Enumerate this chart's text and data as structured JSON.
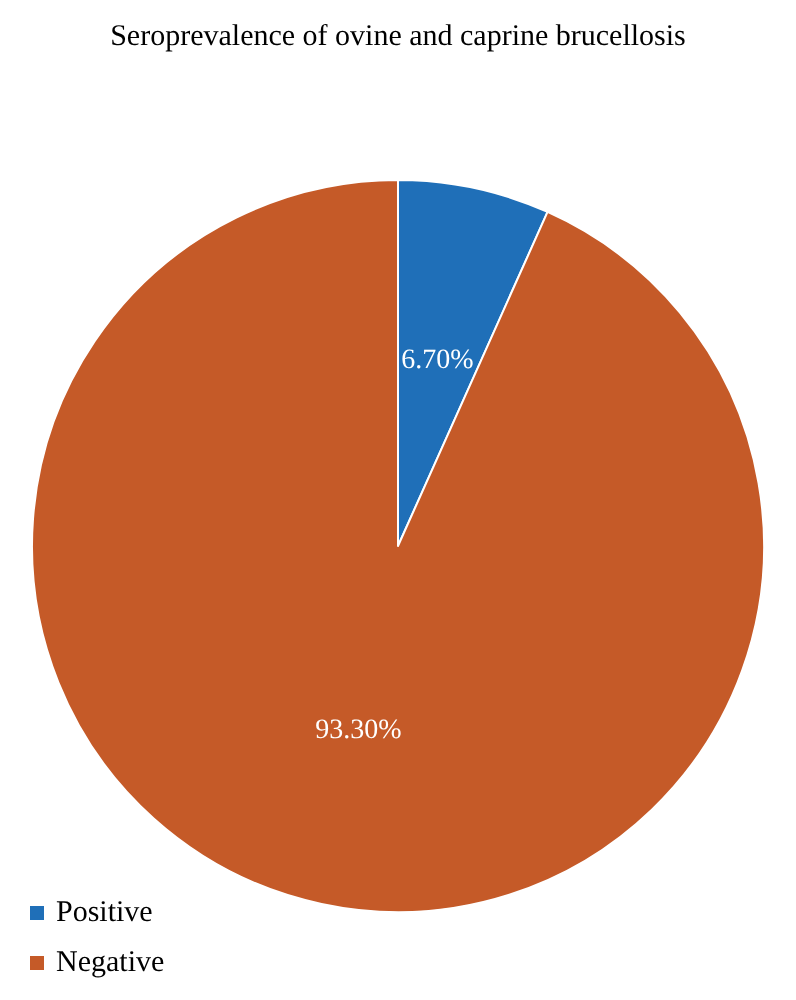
{
  "chart_data": {
    "type": "pie",
    "title": "Seroprevalence of ovine and caprine brucellosis",
    "categories": [
      "Positive",
      "Negative"
    ],
    "values": [
      6.7,
      93.3
    ],
    "colors": [
      "#1f6fb8",
      "#c55a28"
    ],
    "value_labels": [
      "6.70%",
      "93.30%"
    ],
    "legend": "bottom left"
  }
}
